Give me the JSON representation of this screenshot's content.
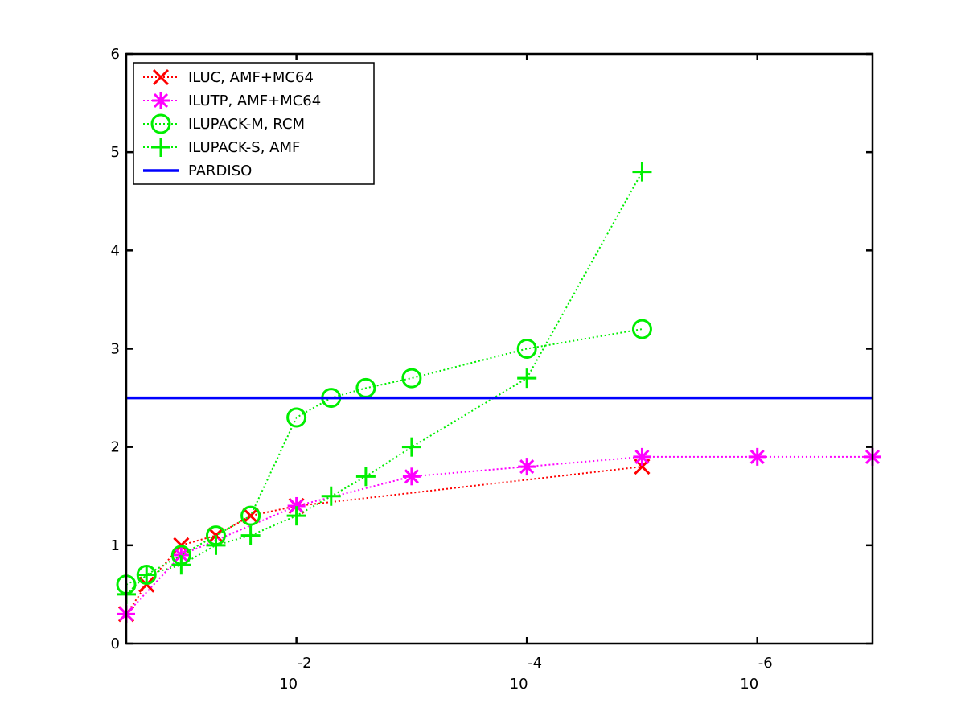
{
  "chart_data": {
    "type": "line",
    "x_scale": "log",
    "x_direction": "decreasing",
    "x_ticks": [
      {
        "value": 0.01,
        "base": "10",
        "exponent": "-2"
      },
      {
        "value": 0.0001,
        "base": "10",
        "exponent": "-4"
      },
      {
        "value": 1e-06,
        "base": "10",
        "exponent": "-6"
      }
    ],
    "xlim": [
      0.3,
      1e-07
    ],
    "ylim": [
      0,
      6
    ],
    "y_ticks": [
      0,
      1,
      2,
      3,
      4,
      5,
      6
    ],
    "y_tick_labels": [
      "0",
      "1",
      "2",
      "3",
      "4",
      "5",
      "6"
    ],
    "title": "",
    "xlabel": "",
    "ylabel": "",
    "grid": false,
    "legend_position": "top-left",
    "series": [
      {
        "name": "ILUC, AMF+MC64",
        "color": "#ff0000",
        "marker": "x",
        "line": "dotted",
        "x": [
          0.3,
          0.2,
          0.1,
          0.05,
          0.025,
          0.01,
          1e-05
        ],
        "y": [
          0.3,
          0.6,
          1.0,
          1.1,
          1.3,
          1.4,
          1.8
        ]
      },
      {
        "name": "ILUTP, AMF+MC64",
        "color": "#ff00ff",
        "marker": "asterisk",
        "line": "dotted",
        "x": [
          0.3,
          0.1,
          0.01,
          0.001,
          0.0001,
          1e-05,
          1e-06,
          1e-07
        ],
        "y": [
          0.3,
          0.9,
          1.4,
          1.7,
          1.8,
          1.9,
          1.9,
          1.9
        ]
      },
      {
        "name": "ILUPACK-M, RCM",
        "color": "#00ee00",
        "marker": "circle",
        "line": "dotted",
        "x": [
          0.3,
          0.2,
          0.1,
          0.05,
          0.025,
          0.01,
          0.005,
          0.0025,
          0.001,
          0.0001,
          1e-05
        ],
        "y": [
          0.6,
          0.7,
          0.9,
          1.1,
          1.3,
          2.3,
          2.5,
          2.6,
          2.7,
          3.0,
          3.2
        ]
      },
      {
        "name": "ILUPACK-S, AMF",
        "color": "#00ee00",
        "marker": "plus",
        "line": "dotted",
        "x": [
          0.3,
          0.2,
          0.1,
          0.05,
          0.025,
          0.01,
          0.005,
          0.0025,
          0.001,
          0.0001,
          1e-05
        ],
        "y": [
          0.5,
          0.7,
          0.8,
          1.0,
          1.1,
          1.3,
          1.5,
          1.7,
          2.0,
          2.7,
          4.8
        ]
      },
      {
        "name": "PARDISO",
        "color": "#0000ff",
        "marker": "none",
        "line": "solid",
        "x": [
          0.3,
          1e-07
        ],
        "y": [
          2.5,
          2.5
        ]
      }
    ]
  }
}
